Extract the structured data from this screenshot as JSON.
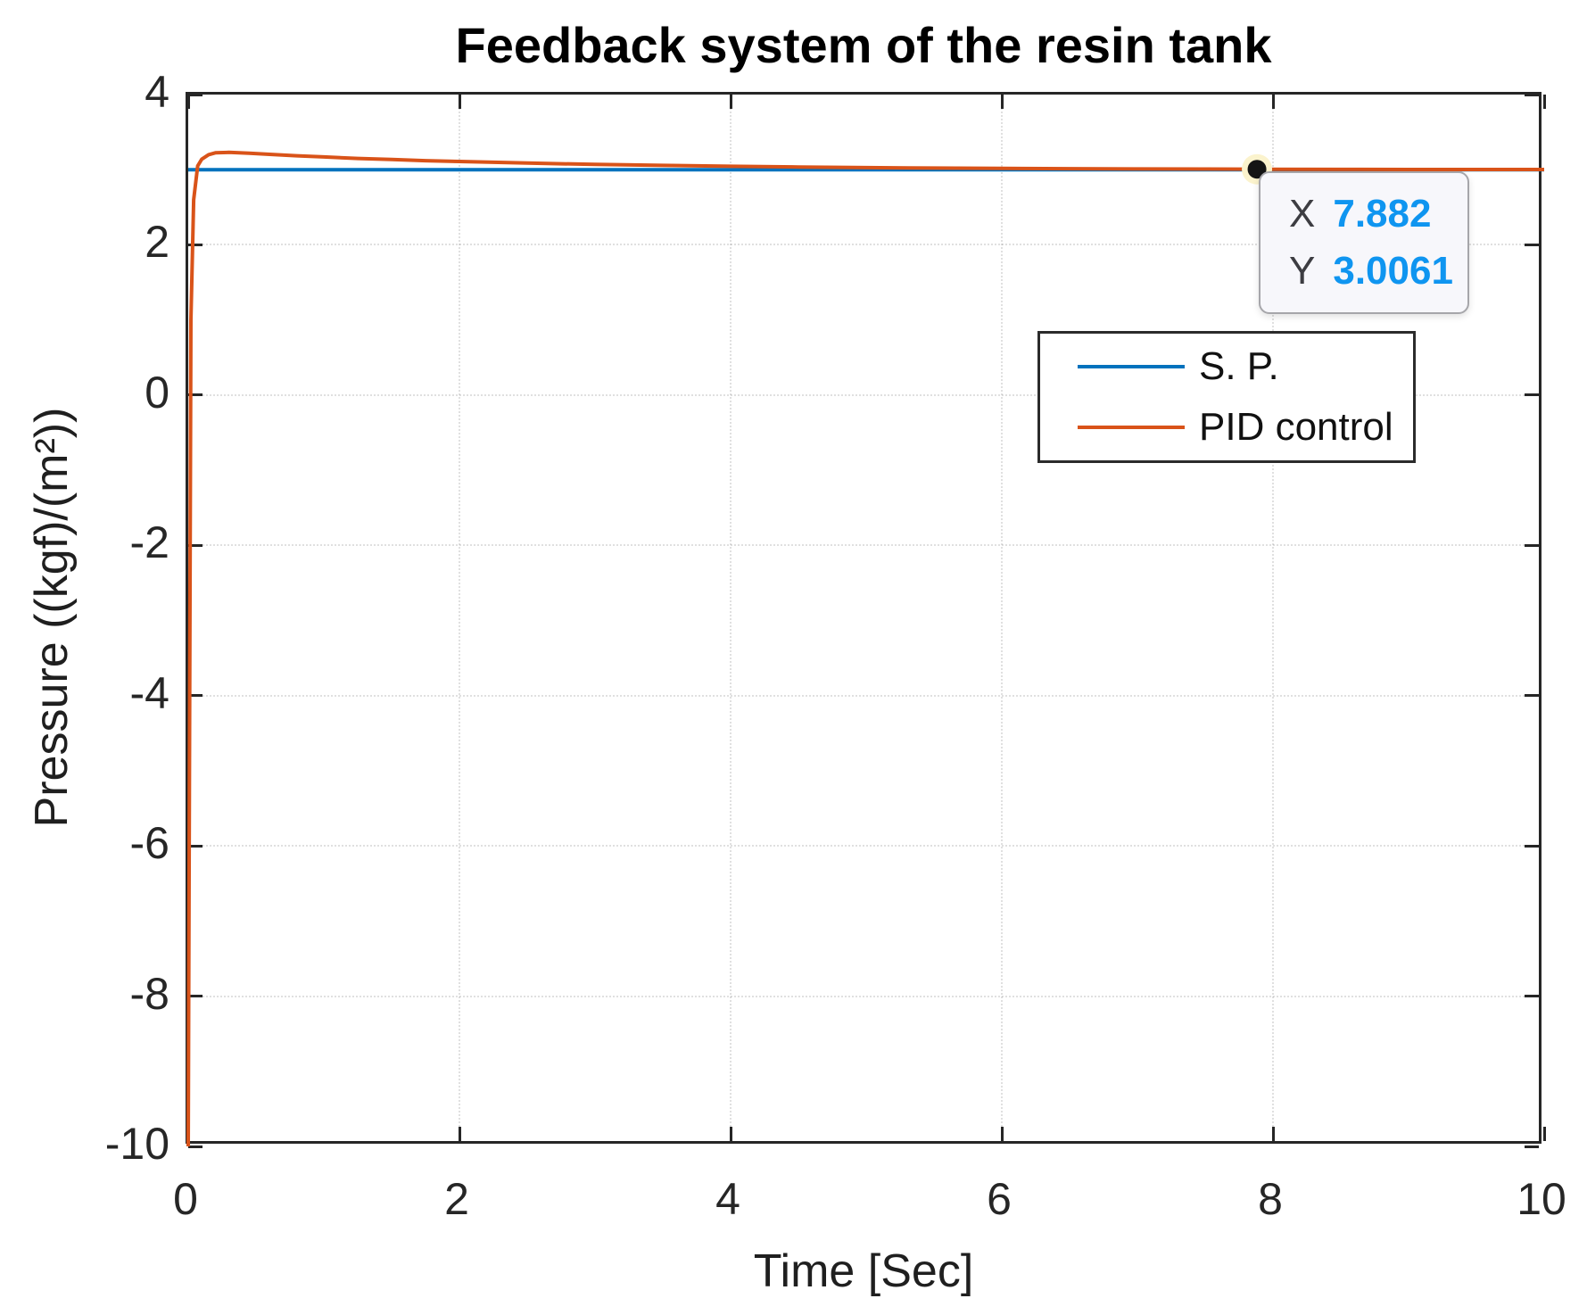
{
  "chart_data": {
    "type": "line",
    "title": "Feedback system of the resin tank",
    "xlabel": "Time [Sec]",
    "ylabel": "Pressure ((kgf)/(m²))",
    "xlim": [
      0,
      10
    ],
    "ylim": [
      -10,
      4
    ],
    "xticks": [
      0,
      2,
      4,
      6,
      8,
      10
    ],
    "yticks": [
      4,
      2,
      0,
      -2,
      -4,
      -6,
      -8,
      -10
    ],
    "grid": true,
    "axis_color": "#262626",
    "grid_style": "dotted",
    "legend": {
      "position": "upper-right-inside"
    },
    "series": [
      {
        "name": "S. P.",
        "color": "#0072BD",
        "x": [
          0,
          10
        ],
        "y": [
          3,
          3
        ]
      },
      {
        "name": "PID control",
        "color": "#D95319",
        "x": [
          0,
          0.02,
          0.04,
          0.07,
          0.1,
          0.15,
          0.2,
          0.3,
          0.45,
          0.6,
          0.8,
          1.0,
          1.25,
          1.5,
          1.75,
          2.0,
          2.5,
          3.0,
          3.5,
          4.0,
          4.5,
          5.0,
          5.5,
          6.0,
          6.5,
          7.0,
          7.5,
          7.882,
          8.5,
          9.0,
          9.5,
          10.0
        ],
        "y": [
          -10,
          1.0,
          2.6,
          3.05,
          3.14,
          3.2,
          3.225,
          3.23,
          3.22,
          3.205,
          3.185,
          3.17,
          3.15,
          3.135,
          3.12,
          3.11,
          3.088,
          3.07,
          3.057,
          3.045,
          3.036,
          3.028,
          3.022,
          3.017,
          3.013,
          3.01,
          3.008,
          3.0061,
          3.004,
          3.003,
          3.0025,
          3.002
        ]
      }
    ],
    "datatip": {
      "x": 7.882,
      "y": 3.0061,
      "x_label": "X",
      "x_value": "7.882",
      "y_label": "Y",
      "y_value": "3.0061",
      "value_color": "#0f95f0",
      "marker_color": "#141414",
      "halo_color": "#fbf3cd"
    }
  }
}
